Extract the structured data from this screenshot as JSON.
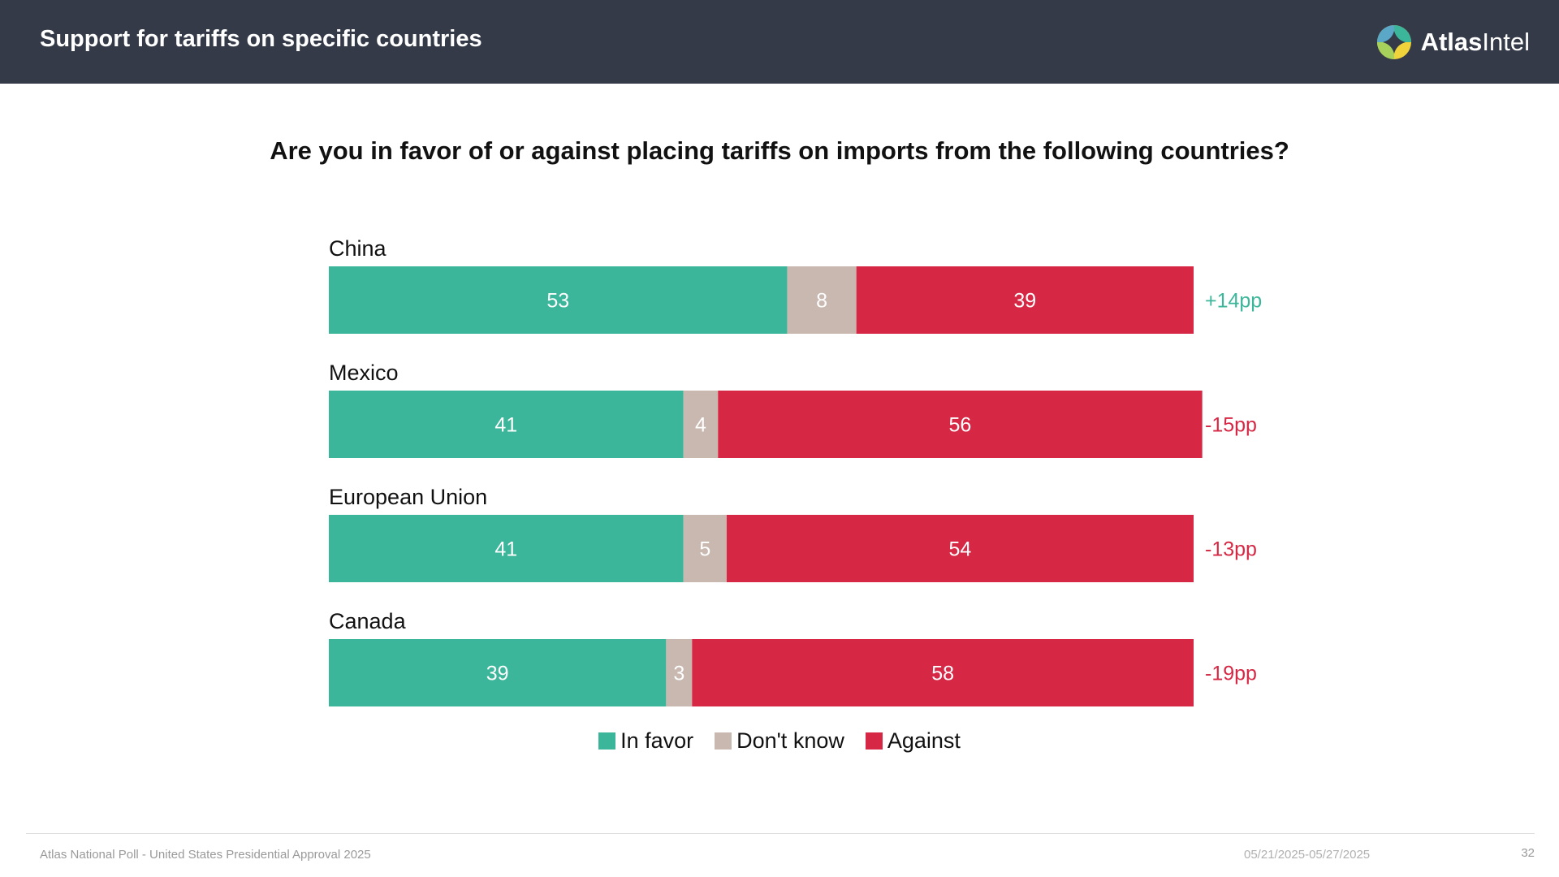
{
  "header": {
    "title": "Support for tariffs on specific countries",
    "logo_text_bold": "Atlas",
    "logo_text_light": "Intel"
  },
  "colors": {
    "in_favor": "#3bb69a",
    "dont_know": "#c8b8b0",
    "against": "#d62845",
    "net_positive": "#3bb69a",
    "net_negative": "#d62845",
    "header_bg": "#343a48"
  },
  "chart_data": {
    "type": "bar",
    "orientation": "horizontal",
    "stacked": true,
    "percent_scale": true,
    "title": "Are you in favor of or against placing tariffs on imports from the following countries?",
    "categories": [
      "China",
      "Mexico",
      "European Union",
      "Canada"
    ],
    "series": [
      {
        "name": "In favor",
        "values": [
          53,
          41,
          41,
          39
        ]
      },
      {
        "name": "Don't know",
        "values": [
          8,
          4,
          5,
          3
        ]
      },
      {
        "name": "Against",
        "values": [
          39,
          56,
          54,
          58
        ]
      }
    ],
    "net_labels": [
      "+14pp",
      "-15pp",
      "-13pp",
      "-19pp"
    ],
    "legend": "bottom-center",
    "xlim": [
      0,
      100
    ]
  },
  "footer": {
    "source": "Atlas National Poll - United States Presidential Approval 2025",
    "date_range": "05/21/2025-05/27/2025",
    "page": "32"
  }
}
